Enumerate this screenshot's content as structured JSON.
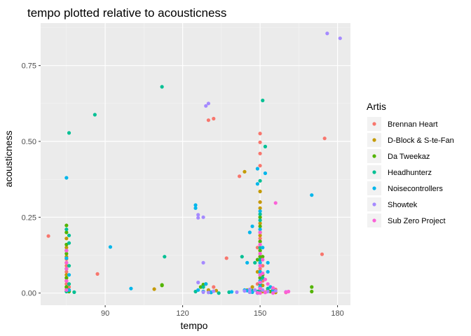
{
  "chart_data": {
    "type": "scatter",
    "title": "tempo plotted relative to acousticness",
    "xlabel": "tempo",
    "ylabel": "acousticness",
    "xlim": [
      65,
      185
    ],
    "ylim": [
      -0.04,
      0.89
    ],
    "x_ticks": [
      {
        "value": 90,
        "label": "90"
      },
      {
        "value": 120,
        "label": "120"
      },
      {
        "value": 150,
        "label": "150"
      },
      {
        "value": 180,
        "label": "180"
      }
    ],
    "y_ticks": [
      {
        "value": 0.0,
        "label": "0.00"
      },
      {
        "value": 0.25,
        "label": "0.25"
      },
      {
        "value": 0.5,
        "label": "0.50"
      },
      {
        "value": 0.75,
        "label": "0.75"
      }
    ],
    "grid": true,
    "legend": {
      "title": "Artis",
      "position": "right"
    },
    "series": [
      {
        "name": "Brennan Heart",
        "color": "#F8766D",
        "points": [
          [
            68,
            0.188
          ],
          [
            75,
            0.112
          ],
          [
            75,
            0.09
          ],
          [
            75,
            0.07
          ],
          [
            75,
            0.05
          ],
          [
            75,
            0.03
          ],
          [
            75,
            0.012
          ],
          [
            76,
            0.02
          ],
          [
            87,
            0.063
          ],
          [
            130,
            0.57
          ],
          [
            132,
            0.575
          ],
          [
            137,
            0.115
          ],
          [
            142,
            0.385
          ],
          [
            132,
            0.02
          ],
          [
            130,
            0.008
          ],
          [
            128,
            0.005
          ],
          [
            150,
            0.526
          ],
          [
            150,
            0.497
          ],
          [
            150,
            0.46
          ],
          [
            150,
            0.42
          ],
          [
            150,
            0.3
          ],
          [
            150,
            0.25
          ],
          [
            150,
            0.2
          ],
          [
            150,
            0.18
          ],
          [
            150,
            0.16
          ],
          [
            150,
            0.14
          ],
          [
            150,
            0.12
          ],
          [
            150,
            0.1
          ],
          [
            150,
            0.08
          ],
          [
            150,
            0.06
          ],
          [
            150,
            0.04
          ],
          [
            150,
            0.02
          ],
          [
            150,
            0.01
          ],
          [
            150,
            0.005
          ],
          [
            150,
            0.0
          ],
          [
            149,
            0.15
          ],
          [
            151,
            0.09
          ],
          [
            149,
            0.03
          ],
          [
            151,
            0.04
          ],
          [
            175,
            0.51
          ],
          [
            174,
            0.128
          ],
          [
            160,
            0.002
          ],
          [
            156,
            0.012
          ],
          [
            147,
            0.005
          ],
          [
            152,
            0.003
          ]
        ]
      },
      {
        "name": "D-Block & S-te-Fan",
        "color": "#C49A00",
        "points": [
          [
            75,
            0.18
          ],
          [
            75,
            0.15
          ],
          [
            75,
            0.12
          ],
          [
            75,
            0.1
          ],
          [
            75,
            0.06
          ],
          [
            75,
            0.04
          ],
          [
            75,
            0.02
          ],
          [
            76,
            0.01
          ],
          [
            109,
            0.013
          ],
          [
            130,
            0.01
          ],
          [
            133,
            0.008
          ],
          [
            144,
            0.4
          ],
          [
            150,
            0.335
          ],
          [
            150,
            0.3
          ],
          [
            150,
            0.28
          ],
          [
            150,
            0.23
          ],
          [
            150,
            0.19
          ],
          [
            150,
            0.17
          ],
          [
            150,
            0.13
          ],
          [
            150,
            0.11
          ],
          [
            150,
            0.07
          ],
          [
            150,
            0.05
          ],
          [
            150,
            0.03
          ],
          [
            150,
            0.015
          ],
          [
            149,
            0.07
          ],
          [
            151,
            0.025
          ],
          [
            151,
            0.005
          ],
          [
            145,
            0.01
          ],
          [
            147,
            0.02
          ],
          [
            153,
            0.01
          ],
          [
            156,
            0.002
          ]
        ]
      },
      {
        "name": "Da Tweekaz",
        "color": "#53B400",
        "points": [
          [
            75,
            0.223
          ],
          [
            75,
            0.2
          ],
          [
            75,
            0.16
          ],
          [
            75,
            0.13
          ],
          [
            75,
            0.08
          ],
          [
            75,
            0.05
          ],
          [
            75,
            0.02
          ],
          [
            76,
            0.005
          ],
          [
            112,
            0.027
          ],
          [
            112,
            0.025
          ],
          [
            127,
            0.02
          ],
          [
            128,
            0.028
          ],
          [
            129,
            0.03
          ],
          [
            150,
            0.25
          ],
          [
            150,
            0.22
          ],
          [
            150,
            0.2
          ],
          [
            150,
            0.17
          ],
          [
            150,
            0.14
          ],
          [
            150,
            0.12
          ],
          [
            150,
            0.09
          ],
          [
            150,
            0.07
          ],
          [
            150,
            0.05
          ],
          [
            150,
            0.03
          ],
          [
            150,
            0.01
          ],
          [
            149,
            0.11
          ],
          [
            151,
            0.06
          ],
          [
            151,
            0.12
          ],
          [
            170,
            0.02
          ],
          [
            170,
            0.005
          ],
          [
            154,
            0.005
          ],
          [
            146,
            0.003
          ]
        ]
      },
      {
        "name": "Headhunterz",
        "color": "#00C094",
        "points": [
          [
            76,
            0.528
          ],
          [
            75,
            0.21
          ],
          [
            76,
            0.19
          ],
          [
            76,
            0.165
          ],
          [
            75,
            0.14
          ],
          [
            76,
            0.09
          ],
          [
            76,
            0.03
          ],
          [
            75,
            0.005
          ],
          [
            78,
            0.003
          ],
          [
            86,
            0.588
          ],
          [
            112,
            0.68
          ],
          [
            113,
            0.12
          ],
          [
            125,
            0.005
          ],
          [
            128,
            0.02
          ],
          [
            131,
            0.002
          ],
          [
            134,
            0.0
          ],
          [
            138,
            0.003
          ],
          [
            143,
            0.12
          ],
          [
            148,
            0.1
          ],
          [
            150,
            0.37
          ],
          [
            151,
            0.635
          ],
          [
            152,
            0.483
          ],
          [
            150,
            0.26
          ],
          [
            150,
            0.24
          ],
          [
            150,
            0.15
          ],
          [
            150,
            0.11
          ],
          [
            150,
            0.06
          ],
          [
            150,
            0.03
          ],
          [
            150,
            0.01
          ],
          [
            149,
            0.005
          ],
          [
            151,
            0.05
          ],
          [
            153,
            0.015
          ],
          [
            155,
            0.01
          ],
          [
            147,
            0.008
          ]
        ]
      },
      {
        "name": "Noisecontrollers",
        "color": "#00B6EB",
        "points": [
          [
            75,
            0.38
          ],
          [
            75,
            0.115
          ],
          [
            76,
            0.06
          ],
          [
            76,
            0.01
          ],
          [
            92,
            0.152
          ],
          [
            100,
            0.015
          ],
          [
            125,
            0.29
          ],
          [
            125,
            0.28
          ],
          [
            126,
            0.01
          ],
          [
            128,
            0.005
          ],
          [
            129,
            0.03
          ],
          [
            131,
            0.003
          ],
          [
            139,
            0.004
          ],
          [
            144,
            0.01
          ],
          [
            145,
            0.008
          ],
          [
            145,
            0.1
          ],
          [
            146,
            0.2
          ],
          [
            147,
            0.22
          ],
          [
            149,
            0.41
          ],
          [
            149,
            0.36
          ],
          [
            150,
            0.27
          ],
          [
            150,
            0.21
          ],
          [
            150,
            0.1
          ],
          [
            150,
            0.07
          ],
          [
            150,
            0.04
          ],
          [
            150,
            0.02
          ],
          [
            151,
            0.15
          ],
          [
            152,
            0.395
          ],
          [
            153,
            0.1
          ],
          [
            153,
            0.07
          ],
          [
            154,
            0.02
          ],
          [
            155,
            0.006
          ],
          [
            170,
            0.323
          ],
          [
            147,
            0.003
          ],
          [
            149,
            0.0
          ]
        ]
      },
      {
        "name": "Showtek",
        "color": "#A58AFF",
        "points": [
          [
            130,
            0.625
          ],
          [
            129,
            0.617
          ],
          [
            126,
            0.258
          ],
          [
            126,
            0.248
          ],
          [
            128,
            0.25
          ],
          [
            128,
            0.1
          ],
          [
            126,
            0.035
          ],
          [
            128,
            0.003
          ],
          [
            130,
            0.002
          ],
          [
            132,
            0.006
          ],
          [
            144,
            0.007
          ],
          [
            146,
            0.012
          ],
          [
            146,
            0.003
          ],
          [
            148,
            0.01
          ],
          [
            150,
            0.015
          ],
          [
            151,
            0.01
          ],
          [
            153,
            0.005
          ],
          [
            156,
            0.007
          ],
          [
            160,
            0.004
          ],
          [
            176,
            0.856
          ],
          [
            181,
            0.84
          ],
          [
            141,
            0.003
          ]
        ]
      },
      {
        "name": "Sub Zero Project",
        "color": "#FB61D7",
        "points": [
          [
            75,
            0.14
          ],
          [
            75,
            0.1
          ],
          [
            75,
            0.08
          ],
          [
            75,
            0.04
          ],
          [
            75,
            0.01
          ],
          [
            150,
            0.2
          ],
          [
            150,
            0.16
          ],
          [
            150,
            0.13
          ],
          [
            150,
            0.09
          ],
          [
            150,
            0.06
          ],
          [
            150,
            0.035
          ],
          [
            150,
            0.015
          ],
          [
            150,
            0.0
          ],
          [
            151,
            0.11
          ],
          [
            151,
            0.065
          ],
          [
            152,
            0.045
          ],
          [
            153,
            0.03
          ],
          [
            155,
            0.017
          ],
          [
            155,
            0.0
          ],
          [
            156,
            0.297
          ],
          [
            160,
            0.003
          ],
          [
            161,
            0.005
          ],
          [
            149,
            0.001
          ],
          [
            152,
            0.002
          ]
        ]
      }
    ]
  }
}
